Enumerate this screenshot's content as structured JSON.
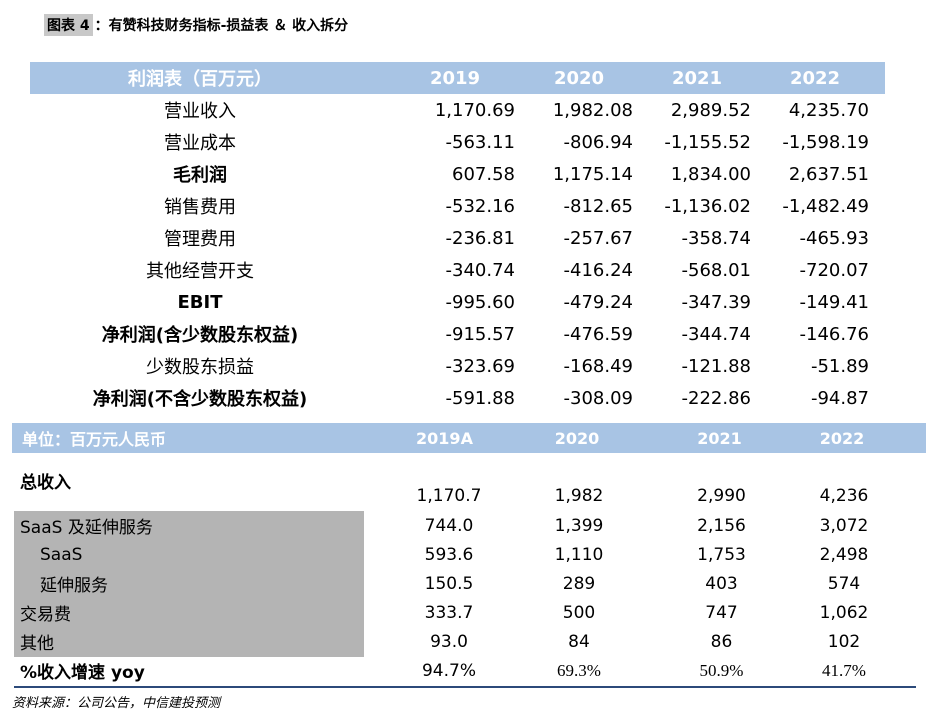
{
  "title": {
    "tag": "图表 4",
    "text": "：有赞科技财务指标-损益表 ＆ 收入拆分"
  },
  "income": {
    "header": [
      "利润表（百万元）",
      "2019",
      "2020",
      "2021",
      "2022"
    ],
    "rows": [
      {
        "label": "营业收入",
        "values": [
          "1,170.69",
          "1,982.08",
          "2,989.52",
          "4,235.70"
        ],
        "bold": false
      },
      {
        "label": "营业成本",
        "values": [
          "-563.11",
          "-806.94",
          "-1,155.52",
          "-1,598.19"
        ],
        "bold": false
      },
      {
        "label": "毛利润",
        "values": [
          "607.58",
          "1,175.14",
          "1,834.00",
          "2,637.51"
        ],
        "bold": true
      },
      {
        "label": "销售费用",
        "values": [
          "-532.16",
          "-812.65",
          "-1,136.02",
          "-1,482.49"
        ],
        "bold": false
      },
      {
        "label": "管理费用",
        "values": [
          "-236.81",
          "-257.67",
          "-358.74",
          "-465.93"
        ],
        "bold": false
      },
      {
        "label": "其他经营开支",
        "values": [
          "-340.74",
          "-416.24",
          "-568.01",
          "-720.07"
        ],
        "bold": false
      },
      {
        "label": "EBIT",
        "values": [
          "-995.60",
          "-479.24",
          "-347.39",
          "-149.41"
        ],
        "bold": true
      },
      {
        "label": "净利润(含少数股东权益)",
        "values": [
          "-915.57",
          "-476.59",
          "-344.74",
          "-146.76"
        ],
        "bold": true
      },
      {
        "label": "少数股东损益",
        "values": [
          "-323.69",
          "-168.49",
          "-121.88",
          "-51.89"
        ],
        "bold": false
      },
      {
        "label": "净利润(不含少数股东权益)",
        "values": [
          "-591.88",
          "-308.09",
          "-222.86",
          "-94.87"
        ],
        "bold": true
      }
    ]
  },
  "revenue": {
    "header": [
      "单位：百万元人民币",
      "2019A",
      "2020",
      "2021",
      "2022"
    ],
    "total_label": "总收入",
    "total_values": [
      "1,170.7",
      "1,982",
      "2,990",
      "4,236"
    ],
    "rows": [
      {
        "label": "SaaS 及延伸服务",
        "values": [
          "744.0",
          "1,399",
          "2,156",
          "3,072"
        ]
      },
      {
        "label": "SaaS",
        "values": [
          "593.6",
          "1,110",
          "1,753",
          "2,498"
        ]
      },
      {
        "label": "延伸服务",
        "values": [
          "150.5",
          "289",
          "403",
          "574"
        ]
      },
      {
        "label": "交易费",
        "values": [
          "333.7",
          "500",
          "747",
          "1,062"
        ]
      },
      {
        "label": "其他",
        "values": [
          "93.0",
          "84",
          "86",
          "102"
        ]
      }
    ],
    "growth_label": "%收入增速 yoy",
    "growth_values": [
      "94.7%",
      "69.3%",
      "50.9%",
      "41.7%"
    ]
  },
  "source": "资料来源：公司公告，中信建投预测"
}
